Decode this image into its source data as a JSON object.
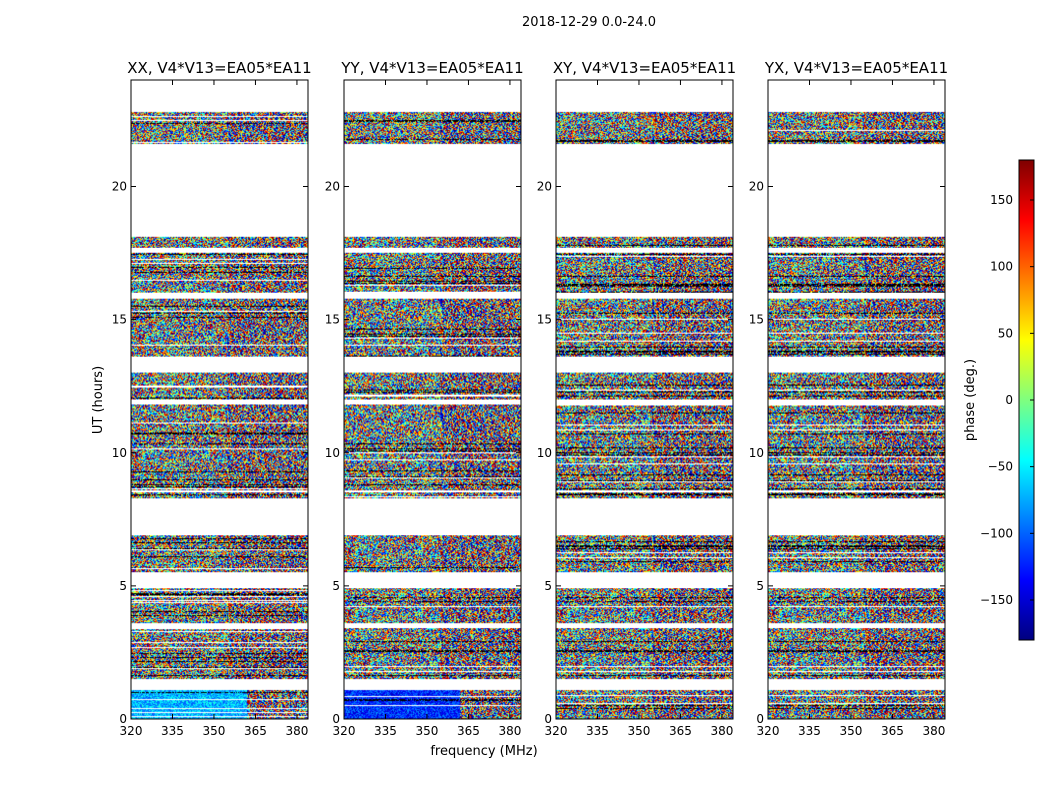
{
  "figure": {
    "suptitle": "2018-12-29 0.0-24.0",
    "ylabel": "UT (hours)",
    "xlabel": "frequency (MHz)"
  },
  "colorbar": {
    "label": "phase (deg.)",
    "range": [
      -180,
      180
    ],
    "ticks": [
      150,
      100,
      50,
      0,
      -50,
      -100,
      -150
    ],
    "tick_labels": [
      "150",
      "100",
      "50",
      "0",
      "−50",
      "−100",
      "−150"
    ],
    "colormap": [
      "#00007f",
      "#0000ff",
      "#007fff",
      "#00ffff",
      "#7fff7f",
      "#ffff00",
      "#ff7f00",
      "#ff0000",
      "#7f0000"
    ]
  },
  "chart_data": {
    "type": "heatmap",
    "quantity": "visibility phase (deg.)",
    "x_range_mhz": [
      320,
      384
    ],
    "y_range_hours": [
      0,
      24
    ],
    "x_ticks": [
      320,
      335,
      350,
      365,
      380
    ],
    "x_tick_labels": [
      "320",
      "335",
      "350",
      "365",
      "380"
    ],
    "y_ticks": [
      0,
      5,
      10,
      15,
      20
    ],
    "y_tick_labels": [
      "0",
      "5",
      "10",
      "15",
      "20"
    ],
    "data_segments_ut": [
      [
        0.0,
        1.1
      ],
      [
        1.5,
        3.4
      ],
      [
        3.6,
        4.9
      ],
      [
        5.5,
        6.9
      ],
      [
        8.3,
        8.5
      ],
      [
        8.6,
        11.8
      ],
      [
        12.0,
        13.0
      ],
      [
        13.6,
        15.8
      ],
      [
        16.0,
        17.5
      ],
      [
        17.7,
        18.1
      ],
      [
        21.6,
        22.8
      ]
    ],
    "panels": [
      {
        "title": "XX, V4*V13=EA05*EA11",
        "low_ut_phase_deg": -70,
        "low_ut_phase_max_mhz": 362
      },
      {
        "title": "YY, V4*V13=EA05*EA11",
        "low_ut_phase_deg": -120,
        "low_ut_phase_max_mhz": 362
      },
      {
        "title": "XY, V4*V13=EA05*EA11",
        "low_ut_phase_deg": null,
        "low_ut_phase_max_mhz": null
      },
      {
        "title": "YX, V4*V13=EA05*EA11",
        "low_ut_phase_deg": null,
        "low_ut_phase_max_mhz": null
      }
    ]
  }
}
